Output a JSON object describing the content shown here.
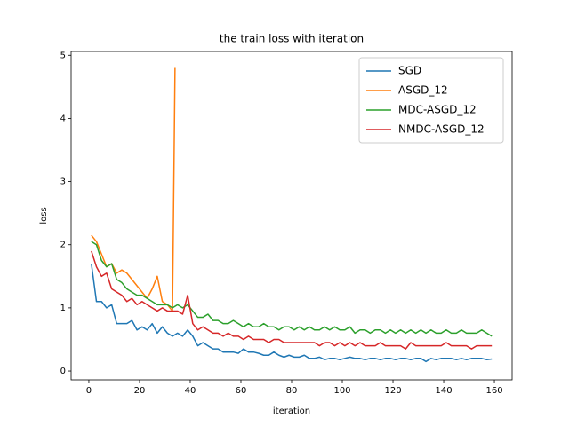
{
  "chart_data": {
    "type": "line",
    "title": "the train loss with iteration",
    "x_label": "iteration",
    "y_label": "loss",
    "x": [
      1,
      3,
      5,
      7,
      9,
      11,
      13,
      15,
      17,
      19,
      21,
      23,
      25,
      27,
      29,
      31,
      33,
      35,
      37,
      39,
      41,
      43,
      45,
      47,
      49,
      51,
      53,
      55,
      57,
      59,
      61,
      63,
      65,
      67,
      69,
      71,
      73,
      75,
      77,
      79,
      81,
      83,
      85,
      87,
      89,
      91,
      93,
      95,
      97,
      99,
      101,
      103,
      105,
      107,
      109,
      111,
      113,
      115,
      117,
      119,
      121,
      123,
      125,
      127,
      129,
      131,
      133,
      135,
      137,
      139,
      141,
      143,
      145,
      147,
      149,
      151,
      153,
      155,
      157,
      159
    ],
    "series": [
      {
        "name": "SGD",
        "color": "#1f77b4",
        "values": [
          1.7,
          1.1,
          1.1,
          1.0,
          1.05,
          0.75,
          0.75,
          0.75,
          0.8,
          0.65,
          0.7,
          0.65,
          0.75,
          0.6,
          0.7,
          0.6,
          0.55,
          0.6,
          0.55,
          0.65,
          0.55,
          0.4,
          0.45,
          0.4,
          0.35,
          0.35,
          0.3,
          0.3,
          0.3,
          0.28,
          0.35,
          0.3,
          0.3,
          0.28,
          0.25,
          0.25,
          0.3,
          0.25,
          0.22,
          0.25,
          0.22,
          0.22,
          0.25,
          0.2,
          0.2,
          0.22,
          0.18,
          0.2,
          0.2,
          0.18,
          0.2,
          0.22,
          0.2,
          0.2,
          0.18,
          0.2,
          0.2,
          0.18,
          0.2,
          0.2,
          0.18,
          0.2,
          0.2,
          0.18,
          0.2,
          0.2,
          0.15,
          0.2,
          0.18,
          0.2,
          0.2,
          0.2,
          0.18,
          0.2,
          0.18,
          0.2,
          0.2,
          0.2,
          0.18,
          0.19
        ]
      },
      {
        "name": "ASGD_12",
        "color": "#ff7f0e",
        "x": [
          1,
          3,
          5,
          7,
          9,
          11,
          13,
          15,
          17,
          19,
          21,
          23,
          25,
          27,
          29,
          31,
          33,
          34
        ],
        "values": [
          2.15,
          2.05,
          1.85,
          1.65,
          1.7,
          1.55,
          1.6,
          1.55,
          1.45,
          1.35,
          1.25,
          1.15,
          1.3,
          1.5,
          1.1,
          1.05,
          0.95,
          4.8
        ]
      },
      {
        "name": "MDC-ASGD_12",
        "color": "#2ca02c",
        "values": [
          2.05,
          2.0,
          1.75,
          1.65,
          1.7,
          1.45,
          1.4,
          1.3,
          1.25,
          1.2,
          1.2,
          1.15,
          1.1,
          1.05,
          1.05,
          1.05,
          1.0,
          1.05,
          1.0,
          1.05,
          0.95,
          0.85,
          0.85,
          0.9,
          0.8,
          0.8,
          0.75,
          0.75,
          0.8,
          0.75,
          0.7,
          0.75,
          0.7,
          0.7,
          0.75,
          0.7,
          0.7,
          0.65,
          0.7,
          0.7,
          0.65,
          0.7,
          0.65,
          0.7,
          0.65,
          0.65,
          0.7,
          0.65,
          0.7,
          0.65,
          0.65,
          0.7,
          0.6,
          0.65,
          0.65,
          0.6,
          0.65,
          0.65,
          0.6,
          0.65,
          0.6,
          0.65,
          0.6,
          0.65,
          0.6,
          0.65,
          0.6,
          0.65,
          0.6,
          0.6,
          0.65,
          0.6,
          0.6,
          0.65,
          0.6,
          0.6,
          0.6,
          0.65,
          0.6,
          0.55
        ]
      },
      {
        "name": "NMDC-ASGD_12",
        "color": "#d62728",
        "values": [
          1.9,
          1.65,
          1.5,
          1.55,
          1.3,
          1.25,
          1.2,
          1.1,
          1.15,
          1.05,
          1.1,
          1.05,
          1.0,
          0.95,
          1.0,
          0.95,
          0.95,
          0.95,
          0.9,
          1.2,
          0.75,
          0.65,
          0.7,
          0.65,
          0.6,
          0.6,
          0.55,
          0.6,
          0.55,
          0.55,
          0.5,
          0.55,
          0.5,
          0.5,
          0.5,
          0.45,
          0.5,
          0.5,
          0.45,
          0.45,
          0.45,
          0.45,
          0.45,
          0.45,
          0.45,
          0.4,
          0.45,
          0.45,
          0.4,
          0.45,
          0.4,
          0.45,
          0.4,
          0.45,
          0.4,
          0.4,
          0.4,
          0.45,
          0.4,
          0.4,
          0.4,
          0.4,
          0.35,
          0.45,
          0.4,
          0.4,
          0.4,
          0.4,
          0.4,
          0.4,
          0.45,
          0.4,
          0.4,
          0.4,
          0.4,
          0.35,
          0.4,
          0.4,
          0.4,
          0.4
        ]
      }
    ],
    "xlim": [
      -7,
      167
    ],
    "ylim": [
      -0.14,
      5.06
    ],
    "xticks": [
      0,
      20,
      40,
      60,
      80,
      100,
      120,
      140,
      160
    ],
    "yticks": [
      0,
      1,
      2,
      3,
      4,
      5
    ],
    "legend": "upper right"
  }
}
